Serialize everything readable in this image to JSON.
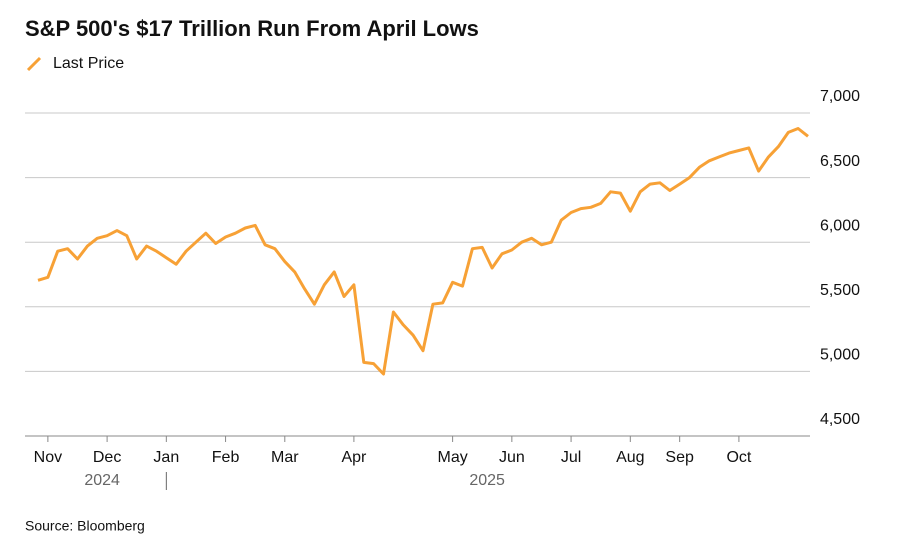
{
  "chart_data": {
    "type": "line",
    "title": "S&P 500's $17 Trillion Run From April Lows",
    "source": "Source: Bloomberg",
    "categories": [
      null,
      "Nov",
      null,
      null,
      null,
      null,
      null,
      "Dec",
      null,
      null,
      null,
      null,
      null,
      "Jan",
      null,
      null,
      null,
      null,
      null,
      "Feb",
      null,
      null,
      null,
      null,
      null,
      "Mar",
      null,
      null,
      null,
      null,
      null,
      null,
      "Apr",
      null,
      null,
      null,
      null,
      null,
      null,
      null,
      null,
      null,
      "May",
      null,
      null,
      null,
      null,
      null,
      "Jun",
      null,
      null,
      null,
      null,
      null,
      "Jul",
      null,
      null,
      null,
      null,
      null,
      "Aug",
      null,
      null,
      null,
      null,
      "Sep",
      null,
      null,
      null,
      null,
      null,
      "Oct",
      null,
      null,
      null,
      null,
      null,
      null,
      null
    ],
    "x_groups": [
      "2024",
      "2025"
    ],
    "series": [
      {
        "name": "Last Price",
        "color": "#f7a136",
        "values": [
          5705,
          5728,
          5930,
          5950,
          5870,
          5970,
          6030,
          6050,
          6090,
          6050,
          5870,
          5970,
          5930,
          5880,
          5830,
          5930,
          6000,
          6070,
          5990,
          6040,
          6070,
          6110,
          6130,
          5980,
          5950,
          5850,
          5770,
          5640,
          5520,
          5670,
          5770,
          5580,
          5670,
          5070,
          5060,
          4980,
          5460,
          5360,
          5280,
          5160,
          5520,
          5530,
          5690,
          5660,
          5950,
          5960,
          5800,
          5910,
          5940,
          6000,
          6030,
          5980,
          6000,
          6170,
          6230,
          6260,
          6270,
          6300,
          6390,
          6380,
          6240,
          6390,
          6450,
          6460,
          6400,
          6450,
          6500,
          6580,
          6630,
          6660,
          6690,
          6710,
          6730,
          6550,
          6660,
          6740,
          6850,
          6880,
          6820
        ]
      }
    ],
    "ylim": [
      4500,
      7000
    ],
    "yticks": [
      {
        "value": 4500,
        "label": "4,500"
      },
      {
        "value": 5000,
        "label": "5,000"
      },
      {
        "value": 5500,
        "label": "5,500"
      },
      {
        "value": 6000,
        "label": "6,000"
      },
      {
        "value": 6500,
        "label": "6,500"
      },
      {
        "value": 7000,
        "label": "7,000"
      }
    ],
    "grid": true
  }
}
